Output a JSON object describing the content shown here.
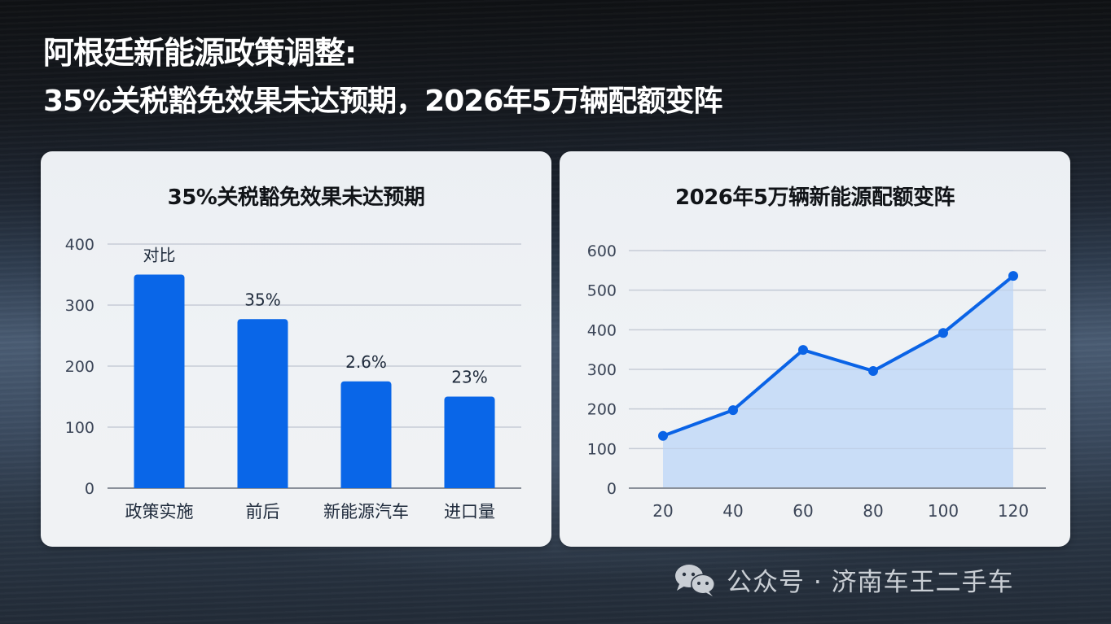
{
  "title": {
    "line1": "阿根廷新能源政策调整:",
    "line2": "35%关税豁免效果未达预期，2026年5万辆配额变阵"
  },
  "colors": {
    "bar": "#0966e8",
    "line": "#0a63e6",
    "area_fill": "#c6dbf7",
    "grid": "#c7ccd6",
    "axis": "#8a909a"
  },
  "watermark": {
    "icon": "wechat-icon",
    "text": "公众号 · 济南车王二手车"
  },
  "chart_data": [
    {
      "type": "bar",
      "title": "35%关税豁免效果未达预期",
      "categories": [
        "政策实施",
        "前后",
        "新能源汽车",
        "进口量"
      ],
      "values": [
        350,
        277,
        175,
        150
      ],
      "data_labels": [
        "对比",
        "35%",
        "2.6%",
        "23%"
      ],
      "xlabel": "",
      "ylabel": "",
      "ylim": [
        0,
        400
      ],
      "yticks": [
        0,
        100,
        200,
        300,
        400
      ],
      "grid": true,
      "legend": null
    },
    {
      "type": "area",
      "title": "2026年5万辆新能源配额变阵",
      "x": [
        20,
        40,
        60,
        80,
        100,
        120
      ],
      "values": [
        132,
        197,
        349,
        296,
        392,
        536
      ],
      "xlabel": "",
      "ylabel": "",
      "ylim": [
        0,
        600
      ],
      "yticks": [
        0,
        100,
        200,
        300,
        400,
        500,
        600
      ],
      "xticks": [
        20,
        40,
        60,
        80,
        100,
        120
      ],
      "grid": true,
      "legend": null,
      "markers": true
    }
  ]
}
